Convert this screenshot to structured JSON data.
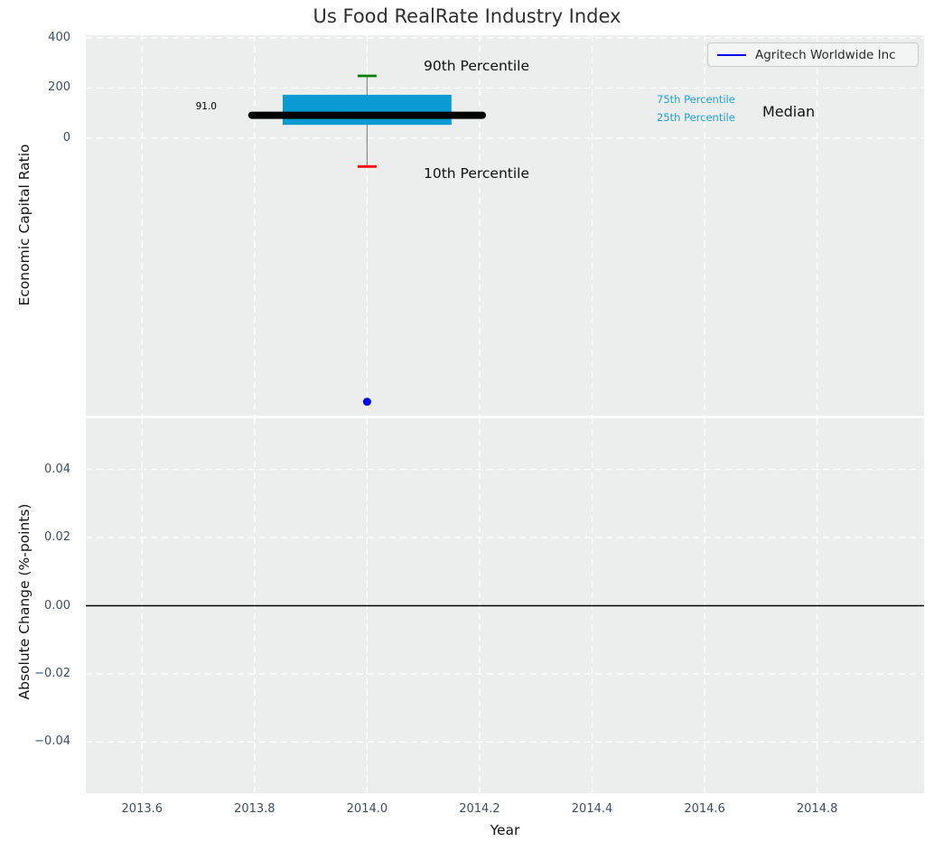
{
  "title": "Us Food RealRate Industry Index",
  "legend": {
    "label": "Agritech Worldwide Inc",
    "line_color": "#0000ee"
  },
  "annotations": {
    "p90_label": "90th Percentile",
    "p10_label": "10th Percentile",
    "p75_label": "75th Percentile",
    "p25_label": "25th Percentile",
    "median_label": "Median",
    "median_value_label": "91.0"
  },
  "axes": {
    "top": {
      "ylabel": "Economic Capital Ratio"
    },
    "bottom": {
      "ylabel": "Absolute Change (%-points)",
      "xlabel": "Year"
    }
  },
  "colors": {
    "axes_background": "#ebeeed",
    "gridline": "#ffffff",
    "tick_label": "#3e4d64",
    "percentile_text_accent": "#22a0d6",
    "box_fill": "#0a9bd2",
    "p90_cap": "#008000",
    "p10_cap": "#ff0000",
    "median_line": "#000000",
    "whisker": "#8a8a8a",
    "company_point": "#0000ee",
    "zero_line": "#000000"
  },
  "chart_data": [
    {
      "type": "boxplot",
      "title": "Us Food RealRate Industry Index",
      "ylabel": "Economic Capital Ratio",
      "xlabel": "Year",
      "grid": true,
      "legend_position": "upper right",
      "xlim": [
        2013.5,
        2014.99
      ],
      "ylim": [
        -1105,
        410
      ],
      "xticks": [
        2013.6,
        2013.8,
        2014.0,
        2014.2,
        2014.4,
        2014.6,
        2014.8
      ],
      "yticks": [
        400,
        200,
        0
      ],
      "ytick_labels": [
        "400",
        "200",
        "0"
      ],
      "box": {
        "x": 2014.0,
        "p10": -113,
        "p25": 53,
        "median": 91.0,
        "p75": 173,
        "p90": 248,
        "box_half_width": 0.15,
        "median_half_width": 0.205
      },
      "series": [
        {
          "name": "Agritech Worldwide Inc",
          "type": "scatter",
          "x": [
            2014.0
          ],
          "y": [
            -1050
          ],
          "color": "#0000ee"
        }
      ],
      "colors": {
        "box": "#0a9bd2",
        "p90_cap": "#008000",
        "p10_cap": "#ff0000",
        "median": "#000000",
        "whisker": "#8a8a8a"
      }
    },
    {
      "type": "line",
      "ylabel": "Absolute Change (%-points)",
      "xlabel": "Year",
      "grid": true,
      "xlim": [
        2013.5,
        2014.99
      ],
      "ylim": [
        -0.055,
        0.055
      ],
      "xticks": [
        2013.6,
        2013.8,
        2014.0,
        2014.2,
        2014.4,
        2014.6,
        2014.8
      ],
      "xtick_labels": [
        "2013.6",
        "2013.8",
        "2014.0",
        "2014.2",
        "2014.4",
        "2014.6",
        "2014.8"
      ],
      "yticks": [
        0.04,
        0.02,
        0.0,
        -0.02,
        -0.04
      ],
      "ytick_labels": [
        "0.04",
        "0.02",
        "0.00",
        "−0.02",
        "−0.04"
      ],
      "zero_line": 0.0,
      "series": []
    }
  ]
}
